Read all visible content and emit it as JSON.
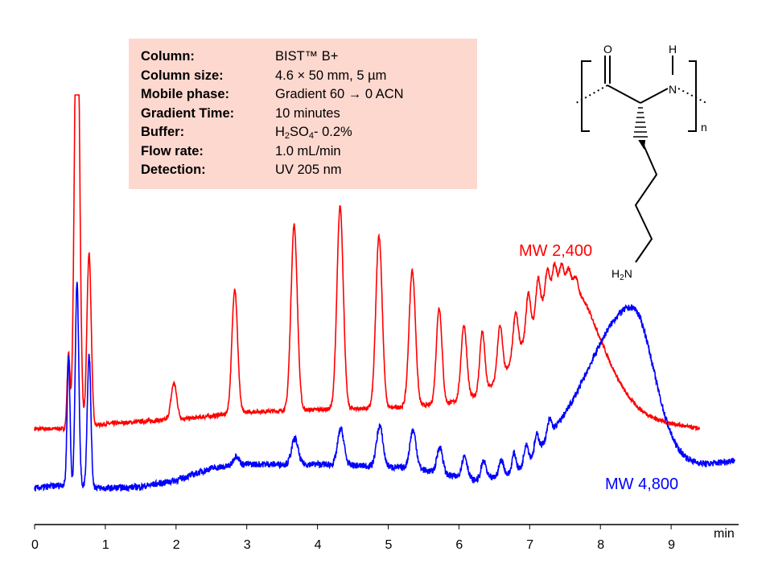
{
  "info_box": {
    "rows": [
      {
        "label": "Column:",
        "value": "BIST™ B+"
      },
      {
        "label": "Column size:",
        "value": "4.6 × 50 mm, 5 µm"
      },
      {
        "label": "Mobile phase:",
        "value": "Gradient 60 → 0 ACN"
      },
      {
        "label": "Gradient Time:",
        "value": "10 minutes"
      },
      {
        "label": "Buffer:",
        "value_parts": [
          "H",
          "2",
          "SO",
          "4",
          "- 0.2%"
        ]
      },
      {
        "label": "Flow rate:",
        "value": "1.0 mL/min"
      },
      {
        "label": "Detection:",
        "value": "UV 205 nm"
      }
    ]
  },
  "structure": {
    "atom_O": "O",
    "atom_H": "H",
    "atom_N": "N",
    "repeat_n": "n",
    "amine_H": "H",
    "amine_sub": "2",
    "amine_N": "N"
  },
  "chart_data": {
    "type": "line",
    "title": "",
    "xlabel": "min",
    "ylabel": "",
    "xlim": [
      0,
      9.9
    ],
    "ylim": [
      0,
      600
    ],
    "x_ticks": [
      "0",
      "1",
      "2",
      "3",
      "4",
      "5",
      "6",
      "7",
      "8",
      "9"
    ],
    "grid": false,
    "series": [
      {
        "name": "MW 2,400",
        "color": "#ff0000",
        "x_range": [
          0,
          9.4
        ],
        "clip_max": 534,
        "baseline": [
          [
            0,
            119
          ],
          [
            0.45,
            119
          ],
          [
            1.0,
            125
          ],
          [
            1.5,
            128
          ],
          [
            2.2,
            132
          ],
          [
            3,
            140
          ],
          [
            4,
            143
          ],
          [
            5,
            145
          ],
          [
            5.8,
            150
          ],
          [
            6.5,
            160
          ],
          [
            7,
            160
          ],
          [
            8,
            140
          ],
          [
            9,
            125
          ],
          [
            9.4,
            119
          ]
        ],
        "hump": {
          "center": 7.55,
          "height": 150,
          "sigma_left": 0.5,
          "sigma_right": 0.45
        },
        "peaks": [
          [
            0.48,
            92,
            0.02
          ],
          [
            0.6,
            600,
            0.035
          ],
          [
            0.77,
            215,
            0.03
          ],
          [
            1.97,
            45,
            0.04
          ],
          [
            2.83,
            155,
            0.04
          ],
          [
            3.67,
            230,
            0.045
          ],
          [
            4.32,
            252,
            0.045
          ],
          [
            4.87,
            214,
            0.045
          ],
          [
            5.34,
            169,
            0.045
          ],
          [
            5.72,
            120,
            0.04
          ],
          [
            6.07,
            92,
            0.04
          ],
          [
            6.33,
            75,
            0.035
          ],
          [
            6.58,
            65,
            0.035
          ],
          [
            6.8,
            55,
            0.035
          ],
          [
            6.98,
            50,
            0.03
          ],
          [
            7.12,
            45,
            0.03
          ],
          [
            7.25,
            38,
            0.03
          ],
          [
            7.35,
            32,
            0.03
          ],
          [
            7.45,
            26,
            0.03
          ],
          [
            7.55,
            20,
            0.03
          ],
          [
            7.65,
            15,
            0.03
          ]
        ],
        "noise": 2.5
      },
      {
        "name": "MW 4,800",
        "color": "#0000ff",
        "x_range": [
          0,
          9.9
        ],
        "clip_max": 600,
        "baseline": [
          [
            0,
            45
          ],
          [
            0.45,
            50
          ],
          [
            1,
            45
          ],
          [
            1.5,
            47
          ],
          [
            2,
            55
          ],
          [
            2.5,
            70
          ],
          [
            3,
            75
          ],
          [
            4,
            75
          ],
          [
            5,
            72
          ],
          [
            5.5,
            68
          ],
          [
            6.2,
            55
          ],
          [
            6.8,
            60
          ],
          [
            7.3,
            85
          ],
          [
            9.5,
            75
          ],
          [
            9.9,
            80
          ]
        ],
        "hump": {
          "center": 8.45,
          "height": 190,
          "sigma_left": 0.6,
          "sigma_right": 0.3
        },
        "peaks": [
          [
            0.48,
            160,
            0.02
          ],
          [
            0.6,
            252,
            0.025
          ],
          [
            0.77,
            165,
            0.025
          ],
          [
            2.85,
            12,
            0.04
          ],
          [
            3.68,
            32,
            0.045
          ],
          [
            4.33,
            45,
            0.045
          ],
          [
            4.88,
            50,
            0.045
          ],
          [
            5.35,
            48,
            0.045
          ],
          [
            5.73,
            33,
            0.04
          ],
          [
            6.08,
            28,
            0.04
          ],
          [
            6.35,
            22,
            0.035
          ],
          [
            6.6,
            20,
            0.035
          ],
          [
            6.78,
            25,
            0.03
          ],
          [
            6.95,
            25,
            0.03
          ],
          [
            7.1,
            22,
            0.03
          ],
          [
            7.28,
            18,
            0.03
          ]
        ],
        "noise": 4
      }
    ]
  }
}
